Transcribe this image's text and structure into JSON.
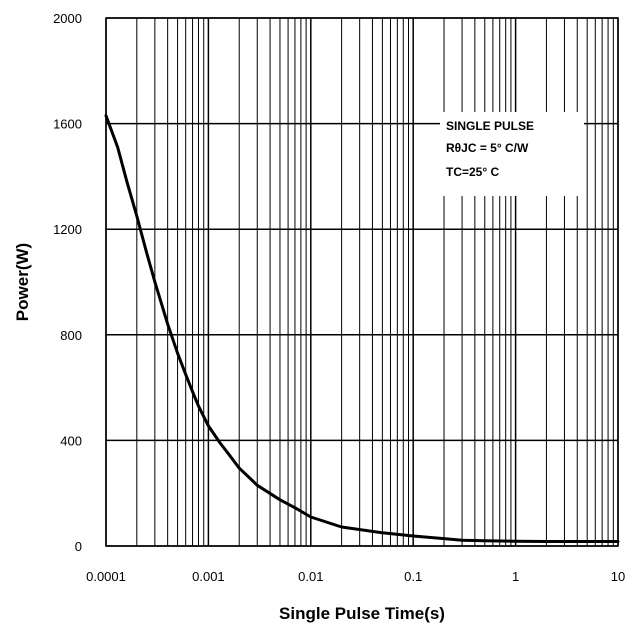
{
  "chart_data": {
    "type": "line",
    "xlabel": "Single Pulse Time(s)",
    "ylabel": "Power(W)",
    "xscale": "log",
    "xlim": [
      0.0001,
      10
    ],
    "ylim": [
      0,
      2000
    ],
    "grid": true,
    "x_ticks": [
      "0.0001",
      "0.001",
      "0.01",
      "0.1",
      "1",
      "10"
    ],
    "y_ticks": [
      "0",
      "400",
      "800",
      "1200",
      "1600",
      "2000"
    ],
    "annotation": {
      "lines": [
        "SINGLE PULSE",
        "RθJC = 5° C/W",
        "TC=25° C"
      ]
    },
    "series": [
      {
        "color": "#000000",
        "x": [
          0.0001,
          0.00013,
          0.00016,
          0.0002,
          0.00025,
          0.0003,
          0.0004,
          0.0005,
          0.0006,
          0.0007,
          0.0008,
          0.001,
          0.0013,
          0.0016,
          0.002,
          0.003,
          0.005,
          0.007,
          0.01,
          0.02,
          0.05,
          0.1,
          0.2,
          0.3,
          0.5,
          1,
          2,
          5,
          10
        ],
        "y": [
          1630,
          1510,
          1380,
          1250,
          1110,
          1000,
          840,
          730,
          650,
          585,
          530,
          455,
          390,
          345,
          295,
          230,
          175,
          145,
          110,
          72,
          50,
          38,
          28,
          22,
          20,
          18,
          17,
          17,
          17
        ]
      }
    ]
  }
}
